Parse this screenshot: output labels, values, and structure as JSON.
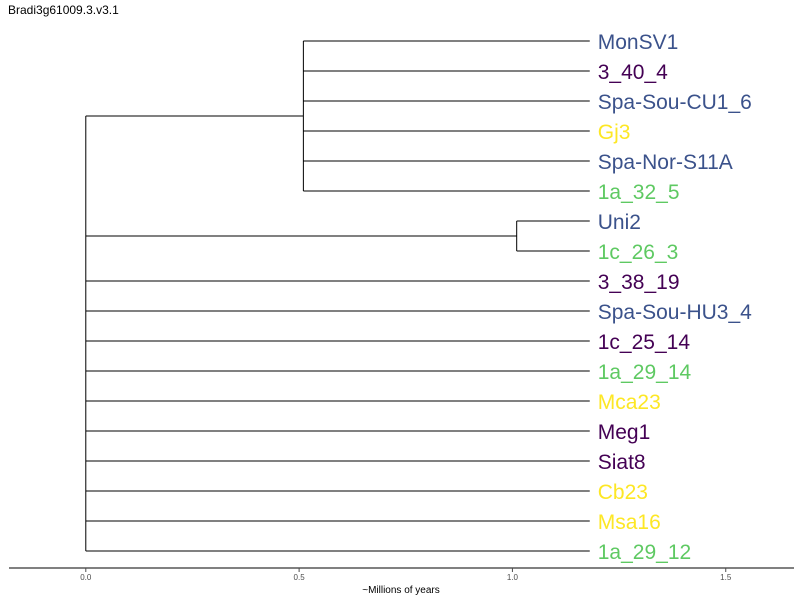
{
  "title": "Bradi3g61009.3.v3.1",
  "chart_data": {
    "type": "dendrogram",
    "xlabel": "~Millions of years",
    "xticks": [
      "0.0",
      "0.5",
      "1.0",
      "1.5"
    ],
    "xlim": [
      -0.18,
      1.66
    ],
    "root_x": 0.0,
    "tip_x": 1.2,
    "clades": [
      {
        "node_x": 0.51,
        "tips": [
          0,
          1,
          2,
          3,
          4,
          5
        ]
      },
      {
        "node_x": 1.01,
        "tips": [
          6,
          7
        ]
      }
    ],
    "tips": [
      {
        "label": "MonSV1",
        "color": "#3b528b"
      },
      {
        "label": "3_40_4",
        "color": "#440154"
      },
      {
        "label": "Spa-Sou-CU1_6",
        "color": "#3b528b"
      },
      {
        "label": "Gj3",
        "color": "#fde725"
      },
      {
        "label": "Spa-Nor-S11A",
        "color": "#3b528b"
      },
      {
        "label": "1a_32_5",
        "color": "#5ec962"
      },
      {
        "label": "Uni2",
        "color": "#3b528b"
      },
      {
        "label": "1c_26_3",
        "color": "#5ec962"
      },
      {
        "label": "3_38_19",
        "color": "#440154"
      },
      {
        "label": "Spa-Sou-HU3_4",
        "color": "#3b528b"
      },
      {
        "label": "1c_25_14",
        "color": "#440154"
      },
      {
        "label": "1a_29_14",
        "color": "#5ec962"
      },
      {
        "label": "Mca23",
        "color": "#fde725"
      },
      {
        "label": "Meg1",
        "color": "#440154"
      },
      {
        "label": "Siat8",
        "color": "#440154"
      },
      {
        "label": "Cb23",
        "color": "#fde725"
      },
      {
        "label": "Msa16",
        "color": "#fde725"
      },
      {
        "label": "1a_29_12",
        "color": "#5ec962"
      }
    ]
  }
}
